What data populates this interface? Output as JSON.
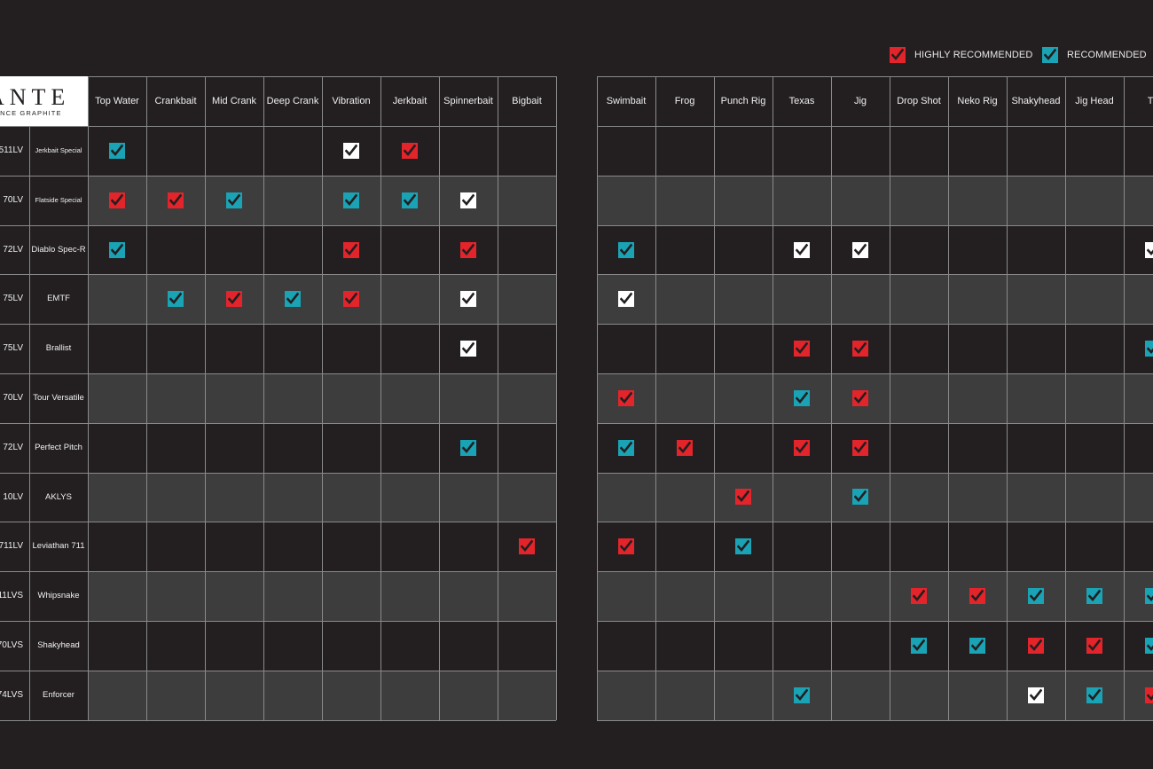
{
  "legend": {
    "highly_recommended": {
      "label": "HIGHLY RECOMMENDED",
      "color": "#e3242b"
    },
    "recommended": {
      "label": "RECOMMENDED",
      "color": "#1aa3b5"
    },
    "neutral_mark_color": "#ffffff"
  },
  "brand": {
    "logo_text": "ANTE",
    "logo_subtext": "ANCE GRAPHITE"
  },
  "columns": {
    "left": [
      "Top Water",
      "Crankbait",
      "Mid Crank",
      "Deep Crank",
      "Vibration",
      "Jerkbait",
      "Spinnerbait",
      "Bigbait"
    ],
    "right": [
      "Swimbait",
      "Frog",
      "Punch Rig",
      "Texas",
      "Jig",
      "Drop Shot",
      "Neko Rig",
      "Shakyhead",
      "Jig Head",
      "Tu"
    ]
  },
  "rows": [
    {
      "code": "511LV",
      "name": "Jerkbait Special",
      "left": [
        "teal",
        "",
        "",
        "",
        "white",
        "red",
        "",
        ""
      ],
      "right": [
        "",
        "",
        "",
        "",
        "",
        "",
        "",
        "",
        "",
        ""
      ]
    },
    {
      "code": "70LV",
      "name": "Flatside Special",
      "left": [
        "red",
        "red",
        "teal",
        "",
        "teal",
        "teal",
        "white",
        ""
      ],
      "right": [
        "",
        "",
        "",
        "",
        "",
        "",
        "",
        "",
        "",
        ""
      ]
    },
    {
      "code": "72LV",
      "name": "Diablo Spec-R",
      "left": [
        "teal",
        "",
        "",
        "",
        "red",
        "",
        "red",
        ""
      ],
      "right": [
        "teal",
        "",
        "",
        "white",
        "white",
        "",
        "",
        "",
        "",
        "white"
      ]
    },
    {
      "code": "75LV",
      "name": "EMTF",
      "left": [
        "",
        "teal",
        "red",
        "teal",
        "red",
        "",
        "white",
        ""
      ],
      "right": [
        "white",
        "",
        "",
        "",
        "",
        "",
        "",
        "",
        "",
        ""
      ]
    },
    {
      "code": "75LV",
      "name": "Brallist",
      "left": [
        "",
        "",
        "",
        "",
        "",
        "",
        "white",
        ""
      ],
      "right": [
        "",
        "",
        "",
        "red",
        "red",
        "",
        "",
        "",
        "",
        "teal"
      ]
    },
    {
      "code": "70LV",
      "name": "Tour Versatile",
      "left": [
        "",
        "",
        "",
        "",
        "",
        "",
        "",
        ""
      ],
      "right": [
        "red",
        "",
        "",
        "teal",
        "red",
        "",
        "",
        "",
        "",
        ""
      ]
    },
    {
      "code": "72LV",
      "name": "Perfect Pitch",
      "left": [
        "",
        "",
        "",
        "",
        "",
        "",
        "teal",
        ""
      ],
      "right": [
        "teal",
        "red",
        "",
        "red",
        "red",
        "",
        "",
        "",
        "",
        ""
      ]
    },
    {
      "code": "10LV",
      "name": "AKLYS",
      "left": [
        "",
        "",
        "",
        "",
        "",
        "",
        "",
        ""
      ],
      "right": [
        "",
        "",
        "red",
        "",
        "teal",
        "",
        "",
        "",
        "",
        ""
      ]
    },
    {
      "code": "711LV",
      "name": "Leviathan 711",
      "left": [
        "",
        "",
        "",
        "",
        "",
        "",
        "",
        "red"
      ],
      "right": [
        "red",
        "",
        "teal",
        "",
        "",
        "",
        "",
        "",
        "",
        ""
      ]
    },
    {
      "code": "11LVS",
      "name": "Whipsnake",
      "left": [
        "",
        "",
        "",
        "",
        "",
        "",
        "",
        ""
      ],
      "right": [
        "",
        "",
        "",
        "",
        "",
        "red",
        "red",
        "teal",
        "teal",
        "teal"
      ]
    },
    {
      "code": "70LVS",
      "name": "Shakyhead",
      "left": [
        "",
        "",
        "",
        "",
        "",
        "",
        "",
        ""
      ],
      "right": [
        "",
        "",
        "",
        "",
        "",
        "teal",
        "teal",
        "red",
        "red",
        "teal"
      ]
    },
    {
      "code": "74LVS",
      "name": "Enforcer",
      "left": [
        "",
        "",
        "",
        "",
        "",
        "",
        "",
        ""
      ],
      "right": [
        "",
        "",
        "",
        "teal",
        "",
        "",
        "",
        "white",
        "teal",
        "red"
      ]
    }
  ]
}
